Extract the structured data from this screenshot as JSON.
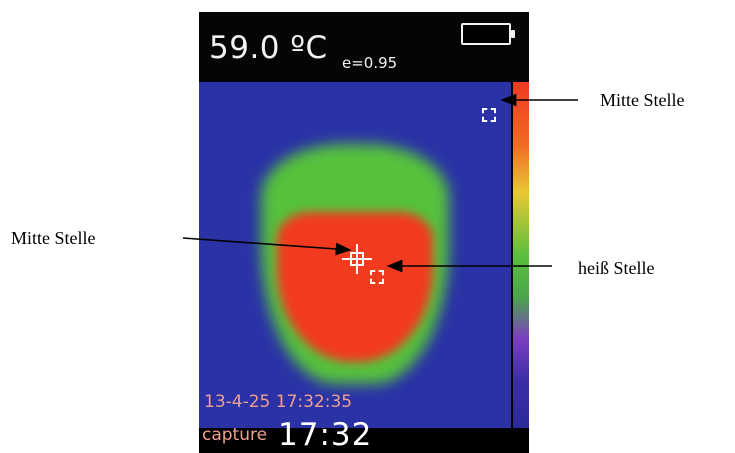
{
  "screen": {
    "temperature": "59.0 ºC",
    "emissivity": "e=0.95",
    "datetime": "13-4-25 17:32:35",
    "mode": "capture",
    "clock": "17:32"
  },
  "annotations": {
    "top_right": "Mitte Stelle",
    "left": "Mitte Stelle",
    "right": "heiß Stelle"
  },
  "colors": {
    "background_cold": "#2a32a6",
    "mid": "#56c23c",
    "hot": "#f23a1f",
    "overlay_text": "#f0a08c"
  }
}
